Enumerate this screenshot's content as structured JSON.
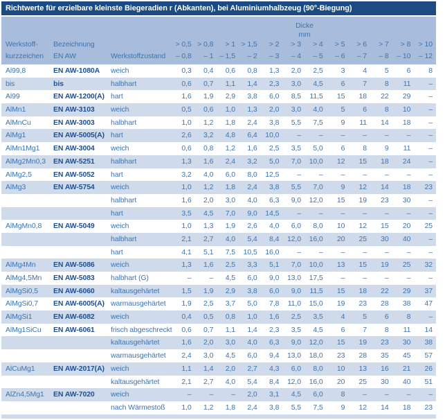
{
  "title": "Richtwerte für erzielbare kleinste Biegeradien r (Abkanten), bei Aluminiumhalbzeug (90°-Biegung)",
  "colors": {
    "title_bar": "#1c4a82",
    "header_bg": "#a7bddb",
    "stripe_bg": "#cfdbeb",
    "text_blue": "#3e73af",
    "bold_blue": "#1e4f92"
  },
  "header": {
    "col1_line1": "Werkstoff-",
    "col1_line2": "kurzzeichen",
    "col2_line1": "Bezeichnung",
    "col2_line2": "EN AW",
    "col3": "Werkstoffzustand",
    "dicke_line1": "Dicke",
    "dicke_line2": "mm",
    "thickness_columns": [
      {
        "from": "> 0,5",
        "to": "– 0,8"
      },
      {
        "from": "> 0,8",
        "to": "– 1"
      },
      {
        "from": "> 1",
        "to": "– 1,5"
      },
      {
        "from": "> 1,5",
        "to": "– 2"
      },
      {
        "from": "> 2",
        "to": "– 3"
      },
      {
        "from": "> 3",
        "to": "– 4"
      },
      {
        "from": "> 4",
        "to": "– 5"
      },
      {
        "from": "> 5",
        "to": "– 6"
      },
      {
        "from": "> 6",
        "to": "– 7"
      },
      {
        "from": "> 7",
        "to": "– 8"
      },
      {
        "from": "> 8",
        "to": "– 10"
      },
      {
        "from": "> 10",
        "to": "– 12"
      }
    ]
  },
  "rows": [
    {
      "kurzzeichen": "Al99,8",
      "en_aw": "EN AW-1080A",
      "zustand": "weich",
      "values": [
        "0,3",
        "0,4",
        "0,6",
        "0,8",
        "1,3",
        "2,0",
        "2,5",
        "3",
        "4",
        "5",
        "6",
        "8"
      ]
    },
    {
      "kurzzeichen": "bis",
      "en_aw": "bis",
      "zustand": "halbhart",
      "values": [
        "0,6",
        "0,7",
        "1,1",
        "1,4",
        "2,3",
        "3,0",
        "4,5",
        "6",
        "7",
        "8",
        "11",
        "–"
      ]
    },
    {
      "kurzzeichen": "Al99",
      "en_aw": "EN AW-1200(A)",
      "zustand": "hart",
      "values": [
        "1,6",
        "1,9",
        "2,9",
        "3,8",
        "6,0",
        "8,5",
        "11,5",
        "15",
        "18",
        "22",
        "29",
        "–"
      ]
    },
    {
      "kurzzeichen": "AlMn1",
      "en_aw": "EN AW-3103",
      "zustand": "weich",
      "values": [
        "0,5",
        "0,6",
        "1,0",
        "1,3",
        "2,0",
        "3,0",
        "4,0",
        "5",
        "6",
        "8",
        "10",
        "–"
      ]
    },
    {
      "kurzzeichen": "AlMnCu",
      "en_aw": "EN AW-3003",
      "zustand": "halbhart",
      "values": [
        "1,0",
        "1,2",
        "1,8",
        "2,4",
        "3,8",
        "5,5",
        "7,5",
        "9",
        "11",
        "14",
        "18",
        "–"
      ]
    },
    {
      "kurzzeichen": "AlMg1",
      "en_aw": "EN AW-5005(A)",
      "zustand": "hart",
      "values": [
        "2,6",
        "3,2",
        "4,8",
        "6,4",
        "10,0",
        "–",
        "–",
        "–",
        "–",
        "–",
        "–",
        "–"
      ]
    },
    {
      "kurzzeichen": "AlMn1Mg1",
      "en_aw": "EN AW-3004",
      "zustand": "weich",
      "values": [
        "0,6",
        "0,8",
        "1,2",
        "1,6",
        "2,5",
        "3,5",
        "5,0",
        "6",
        "8",
        "9",
        "11",
        "–"
      ]
    },
    {
      "kurzzeichen": "AlMg2Mn0,3",
      "en_aw": "EN AW-5251",
      "zustand": "halbhart",
      "values": [
        "1,3",
        "1,6",
        "2,4",
        "3,2",
        "5,0",
        "7,0",
        "10,0",
        "12",
        "15",
        "18",
        "24",
        "–"
      ]
    },
    {
      "kurzzeichen": "AlMg2,5",
      "en_aw": "EN AW-5052",
      "zustand": "hart",
      "values": [
        "3,2",
        "4,0",
        "6,0",
        "8,0",
        "12,5",
        "–",
        "–",
        "–",
        "–",
        "–",
        "–",
        "–"
      ]
    },
    {
      "kurzzeichen": "AlMg3",
      "en_aw": "EN AW-5754",
      "zustand": "weich",
      "values": [
        "1,0",
        "1,2",
        "1,8",
        "2,4",
        "3,8",
        "5,5",
        "7,0",
        "9",
        "12",
        "14",
        "18",
        "23"
      ]
    },
    {
      "kurzzeichen": "",
      "en_aw": "",
      "zustand": "halbhart",
      "values": [
        "1,6",
        "2,0",
        "3,0",
        "4,0",
        "6,3",
        "9,0",
        "12,0",
        "15",
        "19",
        "23",
        "30",
        "–"
      ]
    },
    {
      "kurzzeichen": "",
      "en_aw": "",
      "zustand": "hart",
      "values": [
        "3,5",
        "4,5",
        "7,0",
        "9,0",
        "14,5",
        "–",
        "–",
        "–",
        "–",
        "–",
        "–",
        "–"
      ]
    },
    {
      "kurzzeichen": "AlMgMn0,8",
      "en_aw": "EN AW-5049",
      "zustand": "weich",
      "values": [
        "1,0",
        "1,3",
        "1,9",
        "2,6",
        "4,0",
        "6,0",
        "8,0",
        "10",
        "12",
        "15",
        "20",
        "25"
      ]
    },
    {
      "kurzzeichen": "",
      "en_aw": "",
      "zustand": "halbhart",
      "values": [
        "2,1",
        "2,7",
        "4,0",
        "5,4",
        "8,4",
        "12,0",
        "16,0",
        "20",
        "25",
        "30",
        "40",
        "–"
      ]
    },
    {
      "kurzzeichen": "",
      "en_aw": "",
      "zustand": "hart",
      "values": [
        "4,1",
        "5,1",
        "7,5",
        "10,5",
        "16,0",
        "–",
        "–",
        "–",
        "–",
        "–",
        "–",
        "–"
      ]
    },
    {
      "kurzzeichen": "AlMg4Mn",
      "en_aw": "EN AW-5086",
      "zustand": "weich",
      "values": [
        "1,3",
        "1,6",
        "2,5",
        "3,3",
        "5,1",
        "7,0",
        "10,0",
        "13",
        "15",
        "19",
        "25",
        "32"
      ]
    },
    {
      "kurzzeichen": "AlMg4,5Mn",
      "en_aw": "EN AW-5083",
      "zustand": "halbhart (G)",
      "values": [
        "–",
        "–",
        "4,5",
        "6,0",
        "9,0",
        "13,0",
        "17,5",
        "–",
        "–",
        "–",
        "–",
        "–"
      ]
    },
    {
      "kurzzeichen": "AlMgSi0,5",
      "en_aw": "EN AW-6060",
      "zustand": "kaltausgehärtet",
      "values": [
        "1,5",
        "1,9",
        "2,9",
        "3,8",
        "6,0",
        "9,0",
        "11,5",
        "15",
        "18",
        "22",
        "29",
        "37"
      ]
    },
    {
      "kurzzeichen": "AlMgSi0,7",
      "en_aw": "EN AW-6005(A)",
      "zustand": "warmausgehärtet",
      "values": [
        "1,9",
        "2,5",
        "3,7",
        "5,0",
        "7,8",
        "11,0",
        "15,0",
        "19",
        "23",
        "28",
        "38",
        "47"
      ]
    },
    {
      "kurzzeichen": "AlMgSi1",
      "en_aw": "EN AW-6082",
      "zustand": "weich",
      "values": [
        "0,4",
        "0,5",
        "0,8",
        "1,0",
        "1,6",
        "2,5",
        "3,5",
        "4",
        "5",
        "6",
        "8",
        "–"
      ]
    },
    {
      "kurzzeichen": "AlMg1SiCu",
      "en_aw": "EN AW-6061",
      "zustand": "frisch abgeschreckt",
      "values": [
        "0,6",
        "0,7",
        "1,1",
        "1,4",
        "2,3",
        "3,5",
        "4,5",
        "6",
        "7",
        "8",
        "11",
        "14"
      ]
    },
    {
      "kurzzeichen": "",
      "en_aw": "",
      "zustand": "kaltausgehärtet",
      "values": [
        "1,6",
        "2,0",
        "3,0",
        "4,0",
        "6,3",
        "9,0",
        "12,0",
        "15",
        "19",
        "23",
        "30",
        "38"
      ]
    },
    {
      "kurzzeichen": "",
      "en_aw": "",
      "zustand": "warmausgehärtet",
      "values": [
        "2,4",
        "3,0",
        "4,5",
        "6,0",
        "9,4",
        "13,0",
        "18,0",
        "23",
        "28",
        "35",
        "45",
        "57"
      ]
    },
    {
      "kurzzeichen": "AlCuMg1",
      "en_aw": "EN AW-2017(A)",
      "zustand": "weich",
      "values": [
        "1,1",
        "1,4",
        "2,0",
        "2,7",
        "4,3",
        "6,0",
        "8,0",
        "10",
        "13",
        "16",
        "21",
        "26"
      ]
    },
    {
      "kurzzeichen": "",
      "en_aw": "",
      "zustand": "kaltausgehärtet",
      "values": [
        "2,1",
        "2,7",
        "4,0",
        "5,4",
        "8,4",
        "12,0",
        "16,0",
        "20",
        "25",
        "30",
        "40",
        "51"
      ]
    },
    {
      "kurzzeichen": "AlZn4,5Mg1",
      "en_aw": "EN AW-7020",
      "zustand": "weich",
      "values": [
        "–",
        "–",
        "–",
        "2,0",
        "3,1",
        "4,5",
        "6,0",
        "8",
        "–",
        "–",
        "–",
        "–"
      ]
    },
    {
      "kurzzeichen": "",
      "en_aw": "",
      "zustand": "nach Wärmestoß",
      "values": [
        "1,0",
        "1,2",
        "1,8",
        "2,4",
        "3,8",
        "5,5",
        "7,5",
        "9",
        "12",
        "14",
        "18",
        "23"
      ]
    }
  ]
}
